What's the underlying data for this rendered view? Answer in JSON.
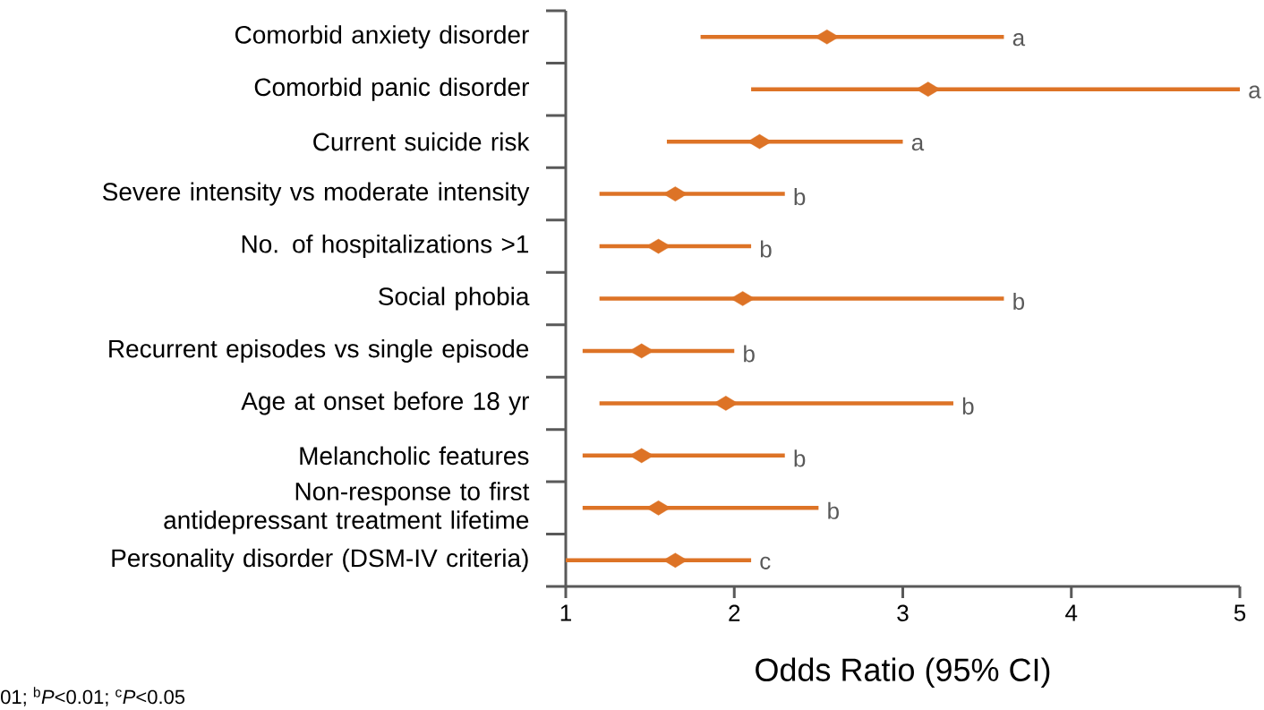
{
  "chart_data": {
    "type": "scatter",
    "orientation": "horizontal",
    "categories": [
      "Comorbid anxiety disorder",
      "Comorbid panic disorder",
      "Current suicide risk",
      "Severe intensity vs moderate intensity",
      "No. of hospitalizations >1",
      "Social phobia",
      "Recurrent episodes vs single episode",
      "Age at onset before 18 yr",
      "Melancholic features",
      "Non-response to first antidepressant treatment lifetime",
      "Personality disorder (DSM-IV criteria)"
    ],
    "values": [
      2.55,
      3.15,
      2.15,
      1.65,
      1.55,
      2.05,
      1.45,
      1.95,
      1.45,
      1.55,
      1.65
    ],
    "errors": [
      [
        1.8,
        3.6
      ],
      [
        2.1,
        5.0
      ],
      [
        1.6,
        3.0
      ],
      [
        1.2,
        2.3
      ],
      [
        1.2,
        2.1
      ],
      [
        1.2,
        3.6
      ],
      [
        1.1,
        2.0
      ],
      [
        1.2,
        3.3
      ],
      [
        1.1,
        2.3
      ],
      [
        1.1,
        2.5
      ],
      [
        1.0,
        2.1
      ]
    ],
    "color": "#dd7326",
    "marker": "diamond",
    "xlim": [
      1,
      5
    ],
    "xticks": [
      1,
      2,
      3,
      4,
      5
    ],
    "xlabel": "Odds Ratio (95% CI)",
    "annotations": [
      {
        "text": "a",
        "x": 3.6,
        "y": "Comorbid anxiety disorder"
      },
      {
        "text": "a",
        "x": 5.0,
        "y": "Comorbid panic disorder"
      },
      {
        "text": "a",
        "x": 3.0,
        "y": "Current suicide risk"
      },
      {
        "text": "b",
        "x": 2.3,
        "y": "Severe intensity vs moderate intensity"
      },
      {
        "text": "b",
        "x": 2.1,
        "y": "No. of hospitalizations >1"
      },
      {
        "text": "b",
        "x": 3.6,
        "y": "Social phobia"
      },
      {
        "text": "b",
        "x": 2.0,
        "y": "Recurrent episodes vs single episode"
      },
      {
        "text": "b",
        "x": 3.3,
        "y": "Age at onset before 18 yr"
      },
      {
        "text": "b",
        "x": 2.3,
        "y": "Melancholic features"
      },
      {
        "text": "b",
        "x": 2.5,
        "y": "Non-response to first antidepressant treatment lifetime"
      },
      {
        "text": "c",
        "x": 2.1,
        "y": "Personality disorder (DSM-IV criteria)"
      },
      "01; $^{b}$*P*<0.01; $^{c}$*P*<0.05"
    ]
  }
}
